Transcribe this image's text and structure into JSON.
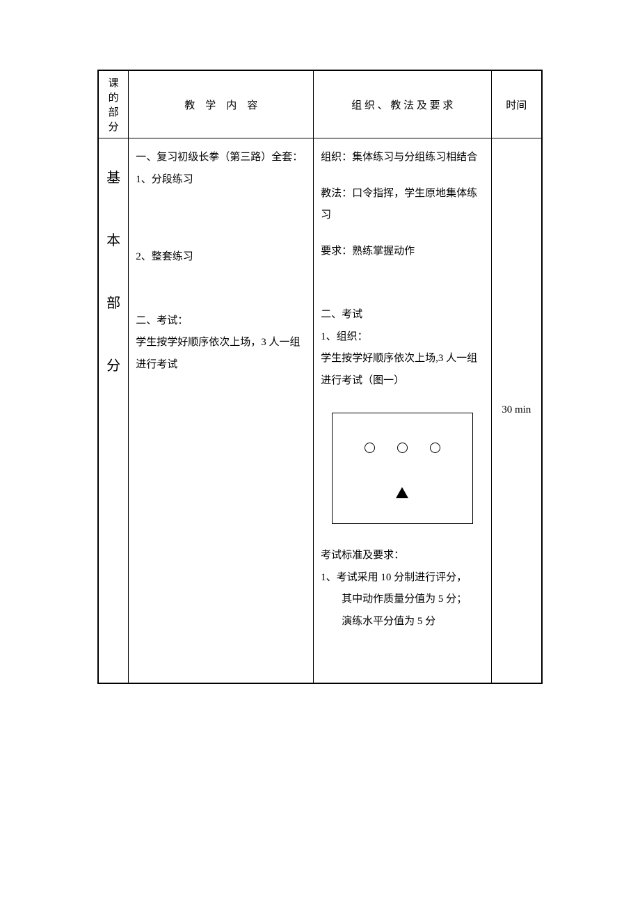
{
  "header": {
    "col1_line1": "课的",
    "col1_line2": "部分",
    "col2": "教　学　内　容",
    "col3": "组 织 、 教 法 及 要 求",
    "col4": "时间"
  },
  "section_label": {
    "c1": "基",
    "c2": "本",
    "c3": "部",
    "c4": "分"
  },
  "content": {
    "l1": "一、复习初级长拳（第三路）全套：",
    "l2": "1、分段练习",
    "l3": "2、整套练习",
    "l4": "二、考试：",
    "l5": "学生按学好顺序依次上场，3 人一组进行考试"
  },
  "method": {
    "l1": "组织：集体练习与分组练习相结合",
    "l2": "教法：口令指挥，学生原地集体练习",
    "l3": "要求：熟练掌握动作",
    "l4": "二、考试",
    "l5": "1、组织：",
    "l6": "学生按学好顺序依次上场,3 人一组进行考试（图一）",
    "l7": "考试标准及要求：",
    "l8": "1、考试采用 10 分制进行评分，",
    "l9": "其中动作质量分值为 5 分；",
    "l10": "演练水平分值为 5 分"
  },
  "time": "30 min",
  "styling": {
    "border_color": "#000000",
    "background_color": "#ffffff",
    "text_color": "#000000",
    "font_family": "SimSun",
    "body_fontsize": 15,
    "label_fontsize": 20,
    "line_height": 2.1,
    "diagram": {
      "border_width": 1.5,
      "circle_count": 3,
      "circle_diameter": 15,
      "circle_border": "#000000",
      "triangle_fill": "#000000"
    }
  }
}
